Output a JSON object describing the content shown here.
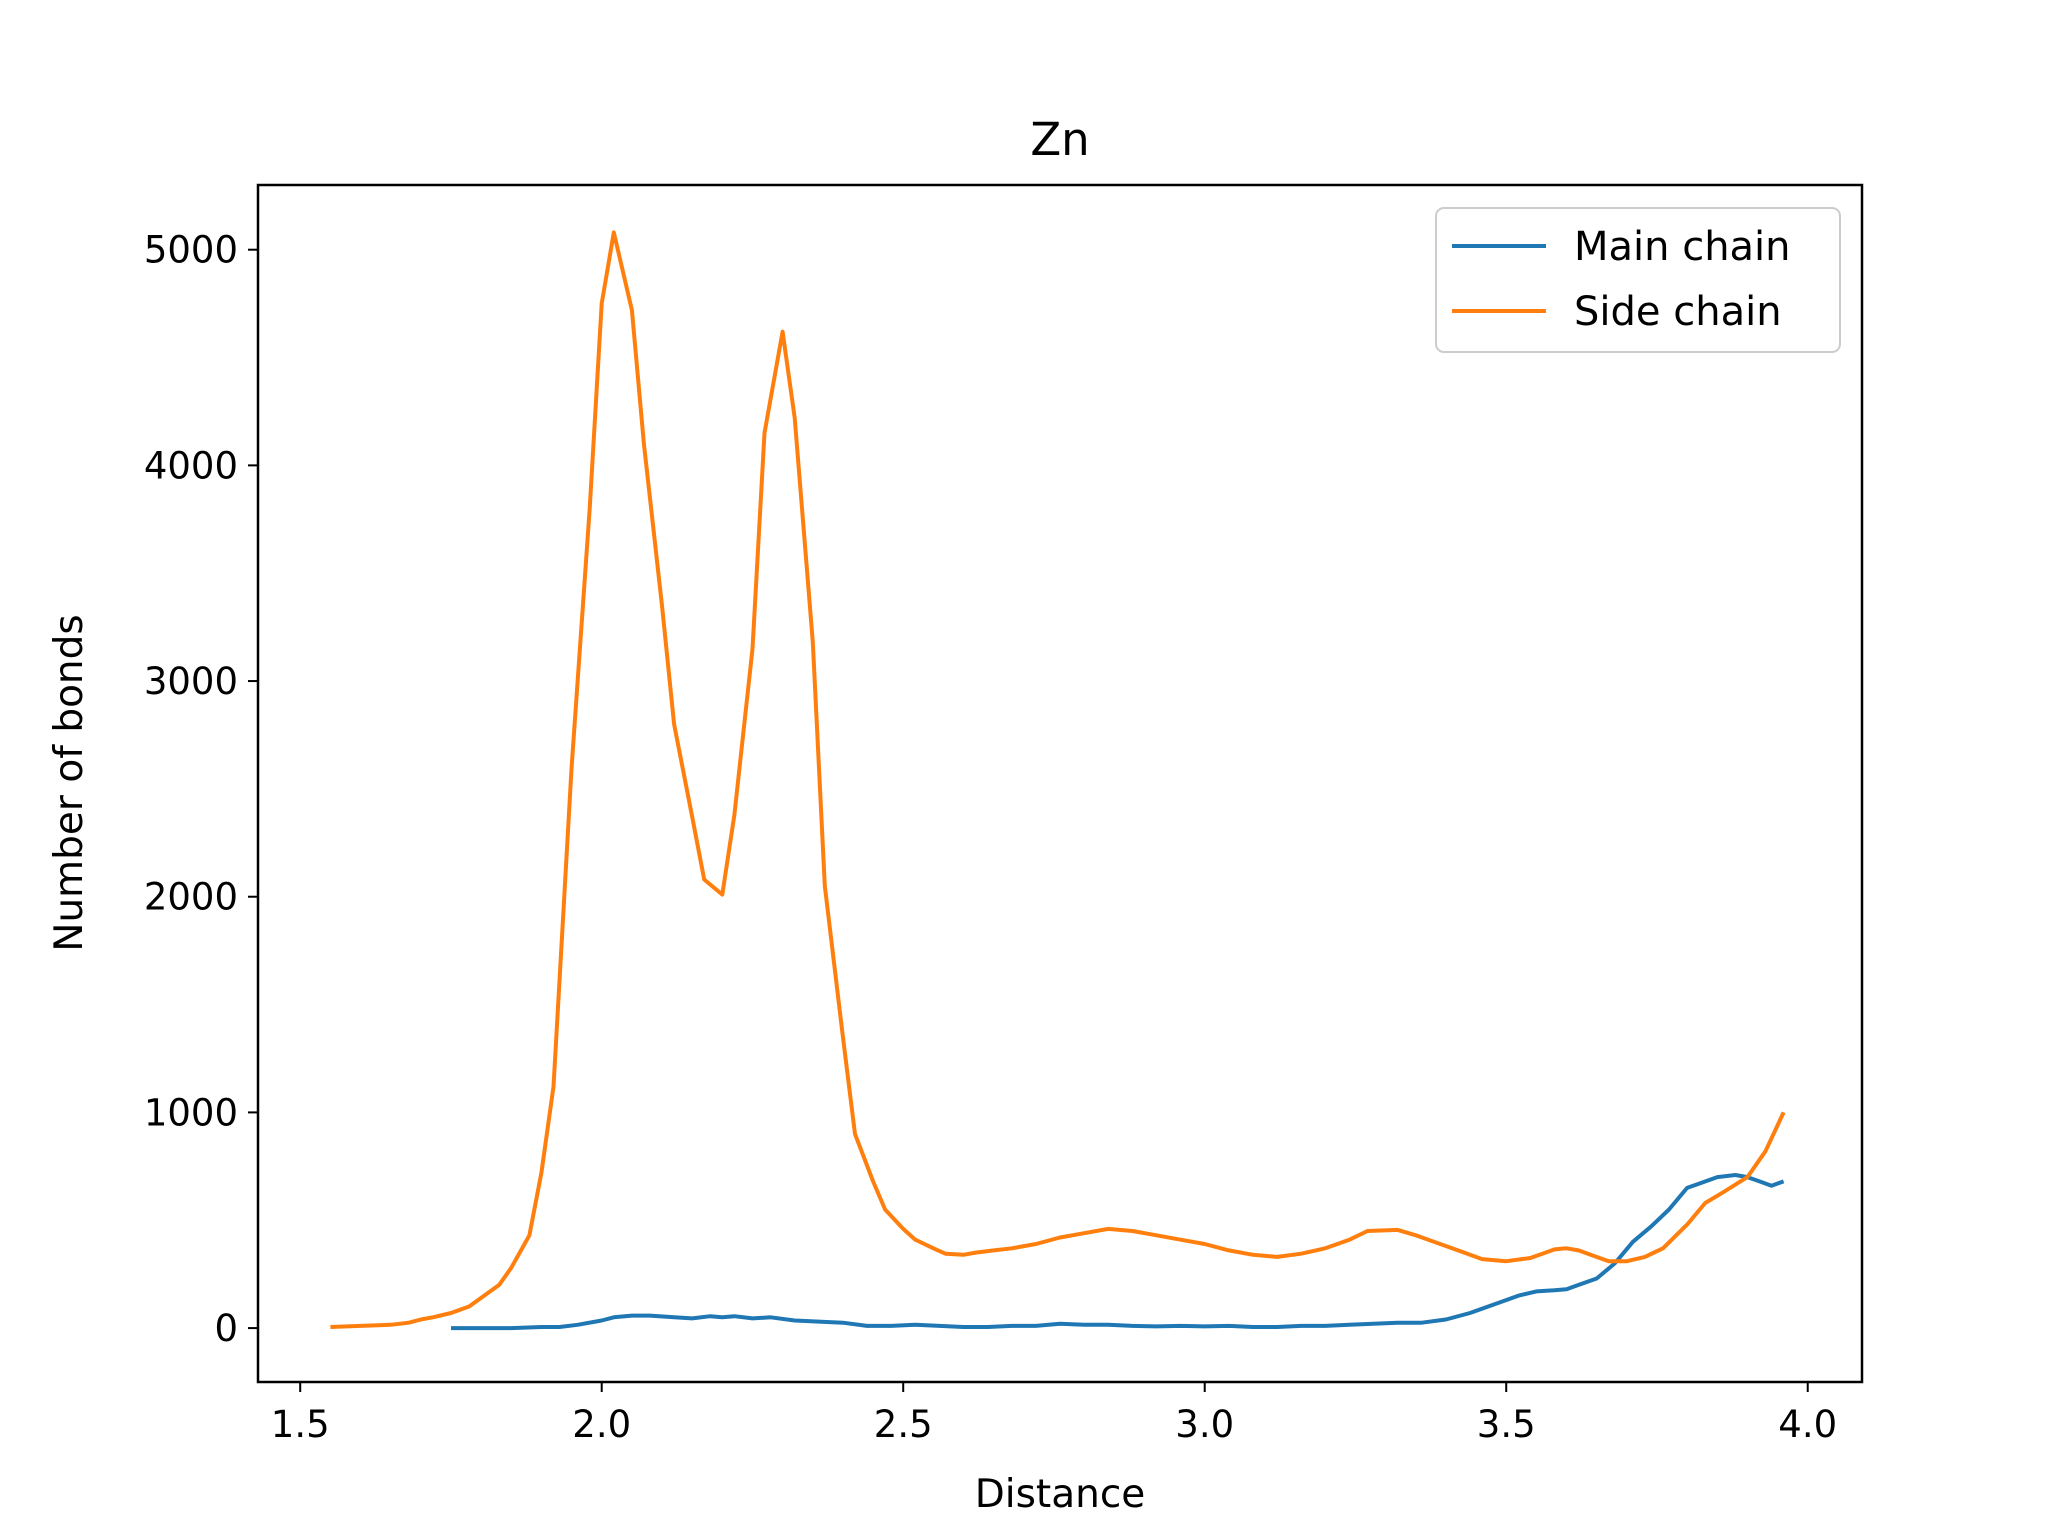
{
  "chart_data": {
    "type": "line",
    "title": "Zn",
    "xlabel": "Distance",
    "ylabel": "Number of bonds",
    "xlim": [
      1.43,
      4.09
    ],
    "ylim": [
      -250,
      5300
    ],
    "xticks": [
      "1.5",
      "2.0",
      "2.5",
      "3.0",
      "3.5",
      "4.0"
    ],
    "yticks": [
      "0",
      "1000",
      "2000",
      "3000",
      "4000",
      "5000"
    ],
    "grid": false,
    "legend_position": "top-right",
    "series": [
      {
        "name": "Main chain",
        "color": "#1f77b4",
        "x": [
          1.75,
          1.8,
          1.85,
          1.9,
          1.93,
          1.96,
          2.0,
          2.02,
          2.05,
          2.08,
          2.12,
          2.15,
          2.18,
          2.2,
          2.22,
          2.25,
          2.28,
          2.32,
          2.36,
          2.4,
          2.44,
          2.48,
          2.52,
          2.56,
          2.6,
          2.64,
          2.68,
          2.72,
          2.76,
          2.8,
          2.84,
          2.88,
          2.92,
          2.96,
          3.0,
          3.04,
          3.08,
          3.12,
          3.16,
          3.2,
          3.24,
          3.28,
          3.32,
          3.36,
          3.4,
          3.44,
          3.48,
          3.52,
          3.55,
          3.58,
          3.6,
          3.62,
          3.65,
          3.68,
          3.71,
          3.74,
          3.77,
          3.8,
          3.82,
          3.85,
          3.88,
          3.9,
          3.92,
          3.94,
          3.96
        ],
        "y": [
          0,
          0,
          0,
          5,
          5,
          15,
          35,
          50,
          58,
          58,
          50,
          45,
          55,
          50,
          55,
          45,
          50,
          35,
          30,
          25,
          10,
          10,
          15,
          10,
          5,
          5,
          10,
          10,
          20,
          15,
          15,
          10,
          8,
          10,
          8,
          10,
          5,
          5,
          10,
          10,
          15,
          20,
          25,
          25,
          40,
          70,
          110,
          150,
          170,
          175,
          180,
          200,
          230,
          300,
          400,
          470,
          550,
          650,
          670,
          700,
          710,
          700,
          680,
          660,
          680
        ]
      },
      {
        "name": "Side chain",
        "color": "#ff7f0e",
        "x": [
          1.55,
          1.6,
          1.65,
          1.68,
          1.7,
          1.72,
          1.75,
          1.78,
          1.8,
          1.83,
          1.85,
          1.88,
          1.9,
          1.92,
          1.95,
          1.98,
          2.0,
          2.02,
          2.05,
          2.07,
          2.1,
          2.12,
          2.15,
          2.17,
          2.2,
          2.22,
          2.25,
          2.27,
          2.3,
          2.32,
          2.35,
          2.37,
          2.4,
          2.42,
          2.45,
          2.47,
          2.5,
          2.52,
          2.55,
          2.57,
          2.6,
          2.62,
          2.65,
          2.68,
          2.72,
          2.76,
          2.8,
          2.84,
          2.88,
          2.92,
          2.96,
          3.0,
          3.04,
          3.08,
          3.12,
          3.16,
          3.2,
          3.24,
          3.27,
          3.32,
          3.35,
          3.38,
          3.42,
          3.46,
          3.5,
          3.54,
          3.56,
          3.58,
          3.6,
          3.62,
          3.64,
          3.67,
          3.7,
          3.73,
          3.76,
          3.8,
          3.83,
          3.86,
          3.9,
          3.93,
          3.96
        ],
        "y": [
          5,
          10,
          15,
          25,
          40,
          50,
          70,
          100,
          140,
          200,
          280,
          430,
          720,
          1120,
          2600,
          3800,
          4750,
          5080,
          4720,
          4100,
          3350,
          2800,
          2370,
          2080,
          2010,
          2380,
          3150,
          4150,
          4620,
          4220,
          3180,
          2050,
          1350,
          900,
          680,
          550,
          460,
          410,
          370,
          345,
          340,
          350,
          360,
          370,
          390,
          420,
          440,
          460,
          450,
          430,
          410,
          390,
          360,
          340,
          330,
          345,
          370,
          410,
          450,
          455,
          430,
          400,
          360,
          320,
          310,
          325,
          345,
          365,
          370,
          360,
          340,
          310,
          310,
          330,
          370,
          480,
          580,
          630,
          700,
          820,
          1000
        ]
      }
    ]
  }
}
